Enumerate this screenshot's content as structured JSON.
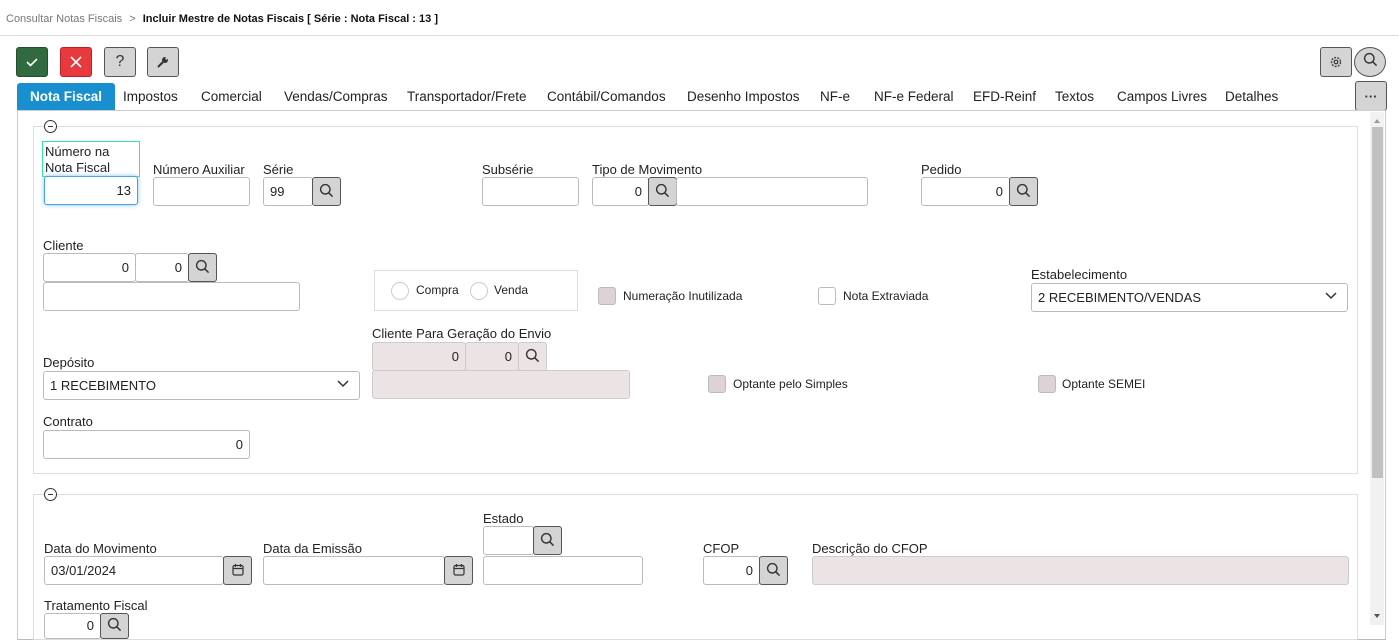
{
  "breadcrumb": {
    "parent": "Consultar Notas Fiscais",
    "separator": ">",
    "current": "Incluir Mestre de Notas Fiscais [ Série : Nota Fiscal : 13 ]"
  },
  "toolbar": {
    "confirm": "check-icon",
    "cancel": "close-icon",
    "help": "?",
    "settings": "wrench-icon",
    "more": "···"
  },
  "colors": {
    "accent": "#1a8fd0",
    "confirm": "#2f6b3e",
    "cancel": "#e8393f",
    "disabled": "#ece3e4",
    "focus": "#2ee8a0"
  },
  "tabs": [
    {
      "label": "Nota Fiscal",
      "active": true
    },
    {
      "label": "Impostos"
    },
    {
      "label": "Comercial"
    },
    {
      "label": "Vendas/Compras"
    },
    {
      "label": "Transportador/Frete"
    },
    {
      "label": "Contábil/Comandos"
    },
    {
      "label": "Desenho Impostos"
    },
    {
      "label": "NF-e"
    },
    {
      "label": "NF-e Federal"
    },
    {
      "label": "EFD-Reinf"
    },
    {
      "label": "Textos"
    },
    {
      "label": "Campos Livres"
    },
    {
      "label": "Detalhes"
    }
  ],
  "s1": {
    "numero_nf": {
      "label1": "Número na",
      "label2": "Nota Fiscal",
      "value": "13"
    },
    "numero_aux": {
      "label": "Número Auxiliar",
      "value": ""
    },
    "serie": {
      "label": "Série",
      "value": "99"
    },
    "subserie": {
      "label": "Subsérie",
      "value": ""
    },
    "tipo_mov": {
      "label": "Tipo de Movimento",
      "code": "0",
      "desc": ""
    },
    "pedido": {
      "label": "Pedido",
      "value": "0"
    },
    "cliente": {
      "label": "Cliente",
      "code1": "0",
      "code2": "0",
      "name": ""
    },
    "radio": {
      "compra": "Compra",
      "venda": "Venda"
    },
    "numeracao_inutilizada": {
      "label": "Numeração Inutilizada",
      "checked": false
    },
    "nota_extraviada": {
      "label": "Nota Extraviada",
      "checked": false
    },
    "estabelecimento": {
      "label": "Estabelecimento",
      "value": "2 RECEBIMENTO/VENDAS"
    },
    "cliente_envio": {
      "label": "Cliente Para Geração do Envio",
      "code1": "0",
      "code2": "0",
      "name": ""
    },
    "deposito": {
      "label": "Depósito",
      "value": "1 RECEBIMENTO"
    },
    "optante_simples": {
      "label": "Optante pelo Simples",
      "checked": false
    },
    "optante_semei": {
      "label": "Optante SEMEI",
      "checked": false
    },
    "contrato": {
      "label": "Contrato",
      "value": "0"
    }
  },
  "s2": {
    "data_mov": {
      "label": "Data do Movimento",
      "value": "03/01/2024"
    },
    "data_emissao": {
      "label": "Data da Emissão",
      "value": ""
    },
    "estado": {
      "label": "Estado",
      "code": "",
      "name": ""
    },
    "cfop": {
      "label": "CFOP",
      "value": "0"
    },
    "desc_cfop": {
      "label": "Descrição do CFOP",
      "value": ""
    },
    "trat_fiscal": {
      "label": "Tratamento Fiscal",
      "value": "0"
    }
  }
}
